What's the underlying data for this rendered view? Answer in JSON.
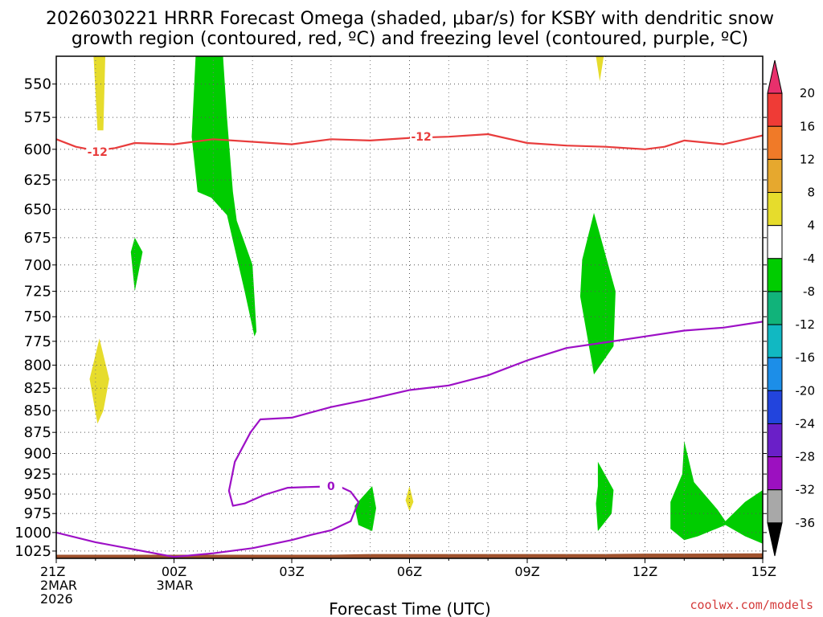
{
  "title": {
    "line1": "2026030221 HRRR Forecast Omega (shaded, μbar/s) for KSBY with dendritic snow",
    "line2": "growth region (contoured, red, ºC) and freezing level (contoured, purple, ºC)"
  },
  "credit": "coolwx.com/models",
  "chart_data": {
    "type": "heatmap",
    "xlabel": "Forecast Time (UTC)",
    "ylabel": "",
    "x_ticks": [
      {
        "hour": 21,
        "lines": [
          "21Z",
          "2MAR",
          "2026"
        ]
      },
      {
        "hour": 24,
        "lines": [
          "00Z",
          "3MAR"
        ]
      },
      {
        "hour": 27,
        "lines": [
          "03Z"
        ]
      },
      {
        "hour": 30,
        "lines": [
          "06Z"
        ]
      },
      {
        "hour": 33,
        "lines": [
          "09Z"
        ]
      },
      {
        "hour": 36,
        "lines": [
          "12Z"
        ]
      },
      {
        "hour": 39,
        "lines": [
          "15Z"
        ]
      }
    ],
    "xlim_hours_from_00Z_2MAR": [
      21,
      39
    ],
    "y_ticks": [
      550,
      575,
      600,
      625,
      650,
      675,
      700,
      725,
      750,
      775,
      800,
      825,
      850,
      875,
      900,
      925,
      950,
      975,
      1000,
      1025
    ],
    "ylim_mb": [
      530,
      1035
    ],
    "y_scale": "log-pressure (inverted)",
    "grid": true,
    "colorbar": {
      "labels": [
        "20",
        "16",
        "12",
        "8",
        "4",
        "-4",
        "-8",
        "-12",
        "-16",
        "-20",
        "-24",
        "-28",
        "-32",
        "-36"
      ],
      "colors": [
        "#e8306c",
        "#ef3b36",
        "#f07a28",
        "#e6a82e",
        "#e6dc2c",
        "#ffffff",
        "#00cc00",
        "#11b37a",
        "#11b8c2",
        "#1c8ee8",
        "#2244dd",
        "#6a1fc8",
        "#9c10c0",
        "#a8a8a8",
        "#000000"
      ]
    },
    "omega_shaded_regions": [
      {
        "level": "4 to 8",
        "color": "#e6dc2c",
        "points": [
          [
            21.95,
            530
          ],
          [
            22.25,
            530
          ],
          [
            22.2,
            585
          ],
          [
            22.05,
            585
          ]
        ]
      },
      {
        "level": "4 to 8",
        "color": "#e6dc2c",
        "points": [
          [
            22.1,
            772
          ],
          [
            22.35,
            815
          ],
          [
            22.2,
            850
          ],
          [
            22.05,
            865
          ],
          [
            21.85,
            815
          ]
        ]
      },
      {
        "level": "4 to 8",
        "color": "#e6dc2c",
        "points": [
          [
            34.75,
            530
          ],
          [
            34.95,
            530
          ],
          [
            34.85,
            548
          ]
        ]
      },
      {
        "level": "4 to 8",
        "color": "#e6dc2c",
        "points": [
          [
            30,
            940
          ],
          [
            30.1,
            960
          ],
          [
            30,
            972
          ],
          [
            29.9,
            958
          ]
        ]
      },
      {
        "level": "-4 to -8",
        "color": "#00cc00",
        "points": [
          [
            24.55,
            530
          ],
          [
            25.25,
            530
          ],
          [
            25.35,
            575
          ],
          [
            25.5,
            635
          ],
          [
            25.6,
            660
          ],
          [
            26,
            700
          ],
          [
            26.1,
            765
          ],
          [
            26.05,
            770
          ],
          [
            25.8,
            725
          ],
          [
            25.35,
            655
          ],
          [
            24.95,
            640
          ],
          [
            24.6,
            635
          ],
          [
            24.45,
            590
          ]
        ]
      },
      {
        "level": "-4 to -8",
        "color": "#00cc00",
        "points": [
          [
            23,
            675
          ],
          [
            23.2,
            688
          ],
          [
            23,
            725
          ],
          [
            22.9,
            688
          ]
        ]
      },
      {
        "level": "-4 to -8",
        "color": "#00cc00",
        "points": [
          [
            34.7,
            653
          ],
          [
            35.25,
            725
          ],
          [
            35.2,
            780
          ],
          [
            34.7,
            810
          ],
          [
            34.35,
            730
          ],
          [
            34.4,
            695
          ]
        ]
      },
      {
        "level": "-4 to -8",
        "color": "#00cc00",
        "points": [
          [
            34.8,
            910
          ],
          [
            35.2,
            945
          ],
          [
            35.15,
            975
          ],
          [
            34.8,
            998
          ],
          [
            34.75,
            962
          ],
          [
            34.8,
            940
          ]
        ]
      },
      {
        "level": "-4 to -8",
        "color": "#00cc00",
        "points": [
          [
            29.05,
            940
          ],
          [
            29.15,
            968
          ],
          [
            29.05,
            998
          ],
          [
            28.7,
            990
          ],
          [
            28.6,
            965
          ]
        ]
      },
      {
        "level": "-4 to -8",
        "color": "#00cc00",
        "points": [
          [
            37,
            885
          ],
          [
            37.25,
            935
          ],
          [
            37.85,
            970
          ],
          [
            38.05,
            985
          ],
          [
            38.55,
            960
          ],
          [
            39,
            945
          ],
          [
            39,
            1015
          ],
          [
            38.55,
            1005
          ],
          [
            38.05,
            990
          ],
          [
            37.35,
            1005
          ],
          [
            37,
            1010
          ],
          [
            36.65,
            995
          ],
          [
            36.65,
            960
          ],
          [
            36.95,
            925
          ]
        ]
      }
    ],
    "dgz_contour_m12": {
      "label": "-12",
      "color": "#e83c3c",
      "label_positions": [
        [
          22.05,
          602
        ],
        [
          30.3,
          590
        ]
      ],
      "points": [
        [
          21,
          592
        ],
        [
          21.5,
          598
        ],
        [
          22,
          601
        ],
        [
          22.5,
          599
        ],
        [
          23,
          595
        ],
        [
          24,
          596
        ],
        [
          25,
          592
        ],
        [
          26,
          594
        ],
        [
          27,
          596
        ],
        [
          28,
          592
        ],
        [
          29,
          593
        ],
        [
          30,
          591
        ],
        [
          31,
          590
        ],
        [
          32,
          588
        ],
        [
          33,
          595
        ],
        [
          34,
          597
        ],
        [
          35,
          598
        ],
        [
          36,
          600
        ],
        [
          36.5,
          598
        ],
        [
          37,
          593
        ],
        [
          38,
          596
        ],
        [
          39,
          589
        ]
      ]
    },
    "freezing_level_0C": {
      "label": "0",
      "color": "#9d10c6",
      "label_positions": [
        [
          28.0,
          940
        ]
      ],
      "points": [
        [
          21,
          1000
        ],
        [
          22,
          1013
        ],
        [
          23,
          1023
        ],
        [
          24,
          1033
        ],
        [
          25,
          1028
        ],
        [
          26,
          1021
        ],
        [
          27,
          1010
        ],
        [
          27.5,
          1003
        ],
        [
          28,
          997
        ],
        [
          28.5,
          985
        ],
        [
          28.7,
          960
        ],
        [
          28.5,
          947
        ],
        [
          28.2,
          940
        ],
        [
          27.5,
          941
        ],
        [
          26.9,
          942
        ],
        [
          26.3,
          951
        ],
        [
          25.8,
          962
        ],
        [
          25.5,
          965
        ],
        [
          25.4,
          946
        ],
        [
          25.55,
          910
        ],
        [
          25.95,
          875
        ],
        [
          26.2,
          860
        ],
        [
          27,
          858
        ],
        [
          28,
          846
        ],
        [
          29,
          837
        ],
        [
          30,
          827
        ],
        [
          31,
          822
        ],
        [
          32,
          811
        ],
        [
          33,
          795
        ],
        [
          34,
          782
        ],
        [
          35,
          776
        ],
        [
          36,
          770
        ],
        [
          37,
          764
        ],
        [
          38,
          761
        ],
        [
          39,
          755
        ]
      ]
    },
    "terrain_surface_mb": [
      [
        21,
        1030
      ],
      [
        28,
        1030
      ],
      [
        29,
        1029
      ],
      [
        35,
        1029
      ],
      [
        36,
        1028.5
      ],
      [
        37,
        1028.5
      ],
      [
        39,
        1028
      ]
    ]
  }
}
